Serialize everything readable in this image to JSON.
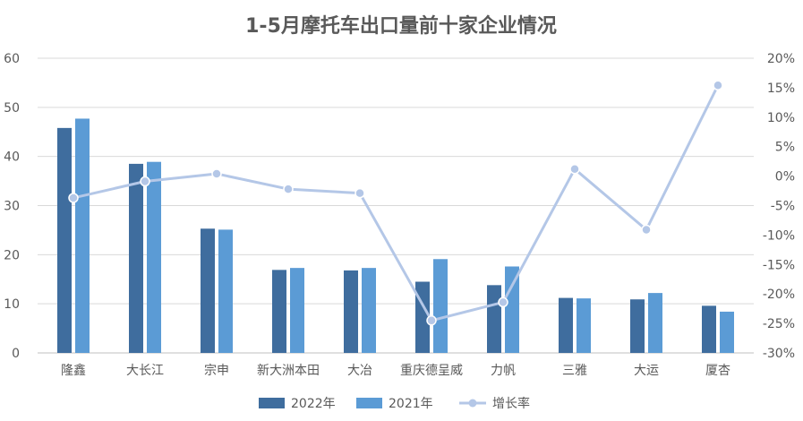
{
  "chart_data": {
    "type": "bar",
    "title": "1-5月摩托车出口量前十家企业情况",
    "categories": [
      "隆鑫",
      "大长江",
      "宗申",
      "新大洲本田",
      "大冶",
      "重庆德呈威",
      "力帆",
      "三雅",
      "大运",
      "厦杏"
    ],
    "series": [
      {
        "name": "2022年",
        "type": "bar",
        "axis": "left",
        "color": "#3f6d9e",
        "values": [
          45.8,
          38.5,
          25.3,
          16.9,
          16.8,
          14.5,
          13.8,
          11.2,
          10.9,
          9.6
        ]
      },
      {
        "name": "2021年",
        "type": "bar",
        "axis": "left",
        "color": "#5b9bd5",
        "values": [
          47.7,
          38.9,
          25.1,
          17.3,
          17.3,
          19.1,
          17.6,
          11.1,
          12.2,
          8.4
        ]
      },
      {
        "name": "增长率",
        "type": "line",
        "axis": "right",
        "color": "#b4c7e7",
        "values": [
          -3.7,
          -0.9,
          0.4,
          -2.2,
          -2.9,
          -24.5,
          -21.4,
          1.2,
          -9.1,
          15.4
        ]
      }
    ],
    "ylim_left": [
      0,
      60
    ],
    "yticks_left": [
      "0",
      "10",
      "20",
      "30",
      "40",
      "50",
      "60"
    ],
    "ylim_right": [
      -30,
      20
    ],
    "yticks_right": [
      "-30%",
      "-25%",
      "-20%",
      "-15%",
      "-10%",
      "-5%",
      "0%",
      "5%",
      "10%",
      "15%",
      "20%"
    ],
    "grid": true,
    "legend_position": "bottom"
  }
}
